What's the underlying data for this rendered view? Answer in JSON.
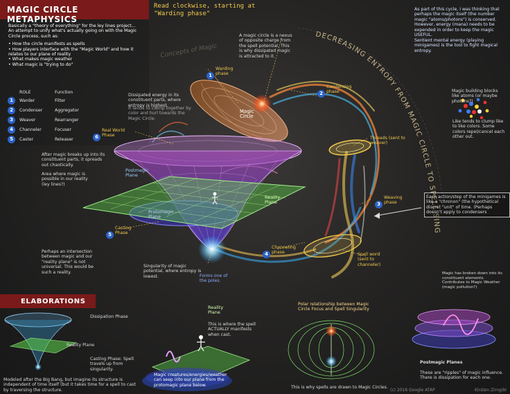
{
  "title": "MAGIC CIRCLE METAPHYSICS",
  "subtitle": "Read clockwise, starting at \"Warding phase\"",
  "intro": {
    "text": "Basically a \"theory of everything\" for the ley lines project... An attempt to unify what's actually going on with the Magic Circle process, such as:",
    "bullets": [
      "How the circle manifests as spells",
      "How players interface with the \"Magic World\" and how it relates to our plane of reality",
      "What makes magic weather",
      "What magic is \"trying to do\""
    ]
  },
  "roles": {
    "header_role": "ROLE",
    "header_function": "Function",
    "rows": [
      {
        "num": "1",
        "role": "Warder",
        "function": "Filter"
      },
      {
        "num": "2",
        "role": "Condenser",
        "function": "Aggregator"
      },
      {
        "num": "3",
        "role": "Weaver",
        "function": "Rearranger"
      },
      {
        "num": "4",
        "role": "Channeler",
        "function": "Focuser"
      },
      {
        "num": "5",
        "role": "Caster",
        "function": "Releaser"
      }
    ]
  },
  "entropy_arc_text": "DECREASING ENTROPY FROM MAGIC CIRCLE TO SPELL SINGULARITY",
  "watermark": "Concepts of Magic",
  "phases": [
    {
      "num": "1",
      "label": "Warding phase"
    },
    {
      "num": "2",
      "label": "Condensing phase"
    },
    {
      "num": "3",
      "label": "Weaving phase"
    },
    {
      "num": "4",
      "label": "Channeling phase"
    },
    {
      "num": "5",
      "label": "Casting Phase"
    },
    {
      "num": "6",
      "label": "Real World Phase"
    }
  ],
  "diagram_labels": {
    "magic_circle": "Magic Circle",
    "postmagic_plane": "Postmagic Plane",
    "protomagic_plane": "Protomagic Plane",
    "reality_plane": "Reality Plane",
    "threads": "Threads (sent to weaver)",
    "spell_word": "Spell word (sent to channeler)"
  },
  "notes": {
    "nexus": "A magic circle is a nexus of opposite charge from the spell potential. This is why dissipated magic is attracted to it.",
    "dissipated": "Dissipated energy in its constituent parts, where entropy is highest.",
    "dissipated_clump": "It tends to clump together by color and hurl towards the Magic Circle.",
    "after_magic": "After magic breaks up into its constituent parts, it spreads out chaotically.",
    "area": "Area where magic is possible in our reality (ley lines?)",
    "intersection": "Perhaps an intersection between magic and our \"reality plane\" is not universal. This would be such a reality.",
    "singularity": "Singularity of magic potential, where entropy is lowest.",
    "poles": "Forms one of the poles.",
    "cycle": "As part of this cycle, I was thinking that perhaps the magic itself (the number magic \"atoms/photons\") is conserved. However, energy (mana) needs to be expended in order to keep the magic USEFUL.",
    "sentient": "Sentient mental energy (playing minigames) is the tool to fight magical entropy.",
    "blocks": "Magic building blocks like atoms (or maybe photons?)",
    "clump_like": "Like tends to clump like to like colors. Some colors repel/cancel each other out.",
    "chronon": "Each action/step of the minigames is like a \"chronon\" (the hypothetical discret \"unit\" of time. (Perhaps doesn't apply to condensers",
    "broken_down": "Magic has broken down into its constituent elements. Contributes to Magic Weather (magic pollution?)"
  },
  "elaborations": {
    "header": "ELABORATIONS",
    "dissipation_phase": "Dissipation Phase",
    "reality_plane": "Reality Plane",
    "casting_phase": "Casting Phase: Spell travels up from singularity.",
    "bigbang": "Modeled after the Big Bang, but imagine its structure is independent of time itself (but it takes time for a spell to cast by traversing the structure.",
    "reality_plane_title": "Reality Plane",
    "actually_manifests": "This is where the spell ACTUALLY manifests when cast.",
    "creatures": "Magic creatures/energies/weather can seep into our plane from the protomagic plane below.",
    "polar": "Polar relationship between Magic Circle Focus and Spell Singularity",
    "drawn": "This is why spells are drawn to Magic Circles.",
    "postmagic_title": "Postmagic Planes",
    "ripples": "These are \"ripples\" of magic influence. There is dissipation for each one."
  },
  "credits": {
    "copyright": "(c) 2016 Google ATAP",
    "author": "Kirsten Zirngibl"
  },
  "colors": {
    "header_red": "#7a1a1a",
    "accent_blue": "#2b63c8",
    "accent_yellow": "#f2c94c",
    "grid_green": "#7fe36a",
    "cone_pink": "#d977e8"
  }
}
